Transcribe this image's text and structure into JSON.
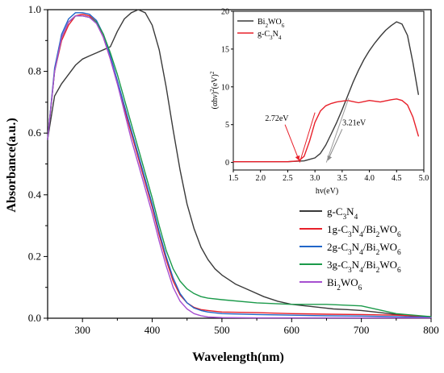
{
  "chart_data": [
    {
      "type": "line",
      "xlabel": "Wavelength(nm)",
      "ylabel": "Absorbance(a.u.)",
      "xlim": [
        250,
        800
      ],
      "ylim": [
        0,
        1.0
      ],
      "xticks": [
        "300",
        "400",
        "500",
        "600",
        "700",
        "800"
      ],
      "yticks": [
        "0.0",
        "0.2",
        "0.4",
        "0.6",
        "0.8",
        "1.0"
      ],
      "legend_position": "middle-right",
      "series": [
        {
          "name": "g-C3N4",
          "color": "#3a3a3a",
          "x": [
            250,
            260,
            270,
            280,
            290,
            300,
            310,
            320,
            330,
            340,
            350,
            360,
            370,
            380,
            390,
            400,
            410,
            420,
            430,
            440,
            450,
            460,
            470,
            480,
            490,
            500,
            520,
            540,
            560,
            580,
            600,
            620,
            640,
            660,
            680,
            700,
            720,
            740,
            760,
            780,
            800
          ],
          "y": [
            0.58,
            0.72,
            0.76,
            0.79,
            0.82,
            0.84,
            0.85,
            0.86,
            0.87,
            0.88,
            0.93,
            0.97,
            0.99,
            1.0,
            0.99,
            0.95,
            0.87,
            0.75,
            0.61,
            0.48,
            0.37,
            0.29,
            0.23,
            0.19,
            0.16,
            0.14,
            0.11,
            0.09,
            0.07,
            0.055,
            0.045,
            0.04,
            0.035,
            0.03,
            0.028,
            0.025,
            0.02,
            0.015,
            0.01,
            0.005,
            0.003
          ]
        },
        {
          "name": "1g-C3N4/Bi2WO6",
          "color": "#e8202a",
          "x": [
            250,
            260,
            270,
            280,
            290,
            300,
            310,
            320,
            330,
            340,
            350,
            360,
            370,
            380,
            390,
            400,
            410,
            420,
            430,
            440,
            450,
            460,
            470,
            480,
            500,
            550,
            600,
            650,
            700,
            750,
            800
          ],
          "y": [
            0.58,
            0.8,
            0.9,
            0.95,
            0.98,
            0.985,
            0.98,
            0.96,
            0.91,
            0.84,
            0.76,
            0.68,
            0.6,
            0.52,
            0.44,
            0.36,
            0.27,
            0.19,
            0.12,
            0.075,
            0.05,
            0.035,
            0.028,
            0.025,
            0.02,
            0.018,
            0.015,
            0.013,
            0.012,
            0.01,
            0.005
          ]
        },
        {
          "name": "2g-C3N4/Bi2WO6",
          "color": "#2166c9",
          "x": [
            250,
            260,
            270,
            280,
            290,
            300,
            310,
            320,
            330,
            340,
            350,
            360,
            370,
            380,
            390,
            400,
            410,
            420,
            430,
            440,
            450,
            460,
            470,
            480,
            500,
            550,
            600,
            650,
            700,
            750,
            800
          ],
          "y": [
            0.58,
            0.81,
            0.92,
            0.97,
            0.99,
            0.99,
            0.985,
            0.965,
            0.92,
            0.85,
            0.77,
            0.69,
            0.61,
            0.53,
            0.45,
            0.37,
            0.28,
            0.2,
            0.13,
            0.08,
            0.05,
            0.033,
            0.025,
            0.02,
            0.015,
            0.012,
            0.01,
            0.008,
            0.007,
            0.005,
            0.003
          ]
        },
        {
          "name": "3g-C3N4/Bi2WO6",
          "color": "#1b9a4a",
          "x": [
            250,
            260,
            270,
            280,
            290,
            300,
            310,
            320,
            330,
            340,
            350,
            360,
            370,
            380,
            390,
            400,
            410,
            420,
            430,
            440,
            450,
            460,
            470,
            480,
            500,
            550,
            600,
            650,
            700,
            750,
            800
          ],
          "y": [
            0.58,
            0.8,
            0.91,
            0.96,
            0.98,
            0.98,
            0.975,
            0.96,
            0.92,
            0.86,
            0.79,
            0.71,
            0.63,
            0.55,
            0.47,
            0.39,
            0.3,
            0.22,
            0.16,
            0.12,
            0.095,
            0.08,
            0.07,
            0.065,
            0.06,
            0.05,
            0.045,
            0.045,
            0.04,
            0.015,
            0.005
          ]
        },
        {
          "name": "Bi2WO6",
          "color": "#a64fd0",
          "x": [
            250,
            260,
            270,
            280,
            290,
            300,
            310,
            320,
            330,
            340,
            350,
            360,
            370,
            380,
            390,
            400,
            410,
            420,
            430,
            440,
            450,
            460,
            470,
            480,
            500,
            550,
            600,
            650,
            700,
            750,
            800
          ],
          "y": [
            0.58,
            0.8,
            0.91,
            0.96,
            0.98,
            0.98,
            0.975,
            0.955,
            0.91,
            0.84,
            0.76,
            0.67,
            0.58,
            0.5,
            0.42,
            0.34,
            0.25,
            0.17,
            0.1,
            0.055,
            0.03,
            0.015,
            0.008,
            0.004,
            0.002,
            0.001,
            0.001,
            0.001,
            0.001,
            0.001,
            0.001
          ]
        }
      ]
    },
    {
      "type": "line",
      "xlabel": "hv(eV)",
      "ylabel": "(αhν)²(eV)²",
      "xlim": [
        1.5,
        5.0
      ],
      "ylim": [
        -1,
        20
      ],
      "xticks": [
        "1.5",
        "2.0",
        "2.5",
        "3.0",
        "3.5",
        "4.0",
        "4.5",
        "5.0"
      ],
      "yticks": [
        "0",
        "5",
        "10",
        "15",
        "20"
      ],
      "legend_position": "top-left",
      "annotations": [
        {
          "text": "2.72eV",
          "x": 2.72,
          "y": 0
        },
        {
          "text": "3.21eV",
          "x": 3.21,
          "y": 0
        }
      ],
      "series": [
        {
          "name": "Bi2WO6",
          "color": "#3a3a3a",
          "x": [
            1.5,
            2.0,
            2.5,
            2.8,
            3.0,
            3.1,
            3.2,
            3.3,
            3.4,
            3.5,
            3.6,
            3.7,
            3.8,
            3.9,
            4.0,
            4.1,
            4.2,
            4.3,
            4.4,
            4.5,
            4.6,
            4.7,
            4.8,
            4.9
          ],
          "y": [
            0.1,
            0.1,
            0.1,
            0.2,
            0.6,
            1.2,
            2.3,
            3.8,
            5.3,
            7.0,
            8.8,
            10.6,
            12.2,
            13.6,
            14.8,
            15.8,
            16.7,
            17.5,
            18.1,
            18.6,
            18.3,
            16.8,
            13.2,
            9.0
          ]
        },
        {
          "name": "g-C3N4",
          "color": "#e8202a",
          "x": [
            1.5,
            2.0,
            2.5,
            2.7,
            2.8,
            2.9,
            3.0,
            3.1,
            3.2,
            3.3,
            3.4,
            3.5,
            3.6,
            3.8,
            4.0,
            4.2,
            4.4,
            4.5,
            4.6,
            4.7,
            4.8,
            4.9
          ],
          "y": [
            0.1,
            0.1,
            0.1,
            0.2,
            0.8,
            2.8,
            5.3,
            6.8,
            7.5,
            7.8,
            8.0,
            8.1,
            8.2,
            7.9,
            8.2,
            8.0,
            8.3,
            8.4,
            8.2,
            7.6,
            6.0,
            3.5
          ]
        }
      ]
    }
  ]
}
